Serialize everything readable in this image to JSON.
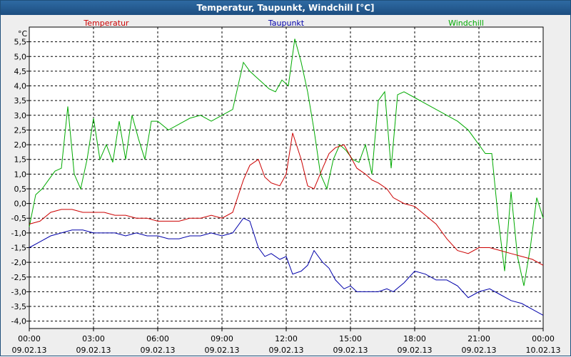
{
  "window": {
    "title": "Temperatur, Taupunkt, Windchill [°C]"
  },
  "colors": {
    "Temperatur": "#cc0000",
    "Taupunkt": "#0000aa",
    "Windchill": "#00aa00",
    "grid": "#000000",
    "plot_background": "#ffffff"
  },
  "chart_data": {
    "type": "line",
    "title": "Temperatur, Taupunkt, Windchill [°C]",
    "unit": "°C",
    "ylim": [
      -4.25,
      6.0
    ],
    "xlim": [
      0,
      24
    ],
    "grid": true,
    "y_ticks": [
      "5,5",
      "5,0",
      "4,5",
      "4,0",
      "3,5",
      "3,0",
      "2,5",
      "2,0",
      "1,5",
      "1,0",
      "0,5",
      "0,0",
      "-0,5",
      "-1,0",
      "-1,5",
      "-2,0",
      "-2,5",
      "-3,0",
      "-3,5",
      "-4,0"
    ],
    "y_tick_values": [
      5.5,
      5.0,
      4.5,
      4.0,
      3.5,
      3.0,
      2.5,
      2.0,
      1.5,
      1.0,
      0.5,
      0.0,
      -0.5,
      -1.0,
      -1.5,
      -2.0,
      -2.5,
      -3.0,
      -3.5,
      -4.0
    ],
    "x_ticks": [
      {
        "time": "00:00",
        "date": "09.02.13"
      },
      {
        "time": "03:00",
        "date": "09.02.13"
      },
      {
        "time": "06:00",
        "date": "09.02.13"
      },
      {
        "time": "09:00",
        "date": "09.02.13"
      },
      {
        "time": "12:00",
        "date": "09.02.13"
      },
      {
        "time": "15:00",
        "date": "09.02.13"
      },
      {
        "time": "18:00",
        "date": "09.02.13"
      },
      {
        "time": "21:00",
        "date": "09.02.13"
      },
      {
        "time": "00:00",
        "date": "10.02.13"
      }
    ],
    "series": [
      {
        "name": "Temperatur",
        "x": [
          0,
          0.5,
          1,
          1.5,
          2,
          2.5,
          3,
          3.5,
          4,
          4.5,
          5,
          5.5,
          6,
          6.5,
          7,
          7.5,
          8,
          8.5,
          9,
          9.5,
          10,
          10.3,
          10.7,
          11,
          11.3,
          11.7,
          12,
          12.3,
          12.7,
          13,
          13.3,
          13.7,
          14,
          14.3,
          14.7,
          15,
          15.3,
          15.7,
          16,
          16.3,
          16.7,
          17,
          17.5,
          18,
          18.5,
          19,
          19.5,
          20,
          20.5,
          21,
          21.5,
          22,
          22.5,
          23,
          23.5,
          24
        ],
        "values": [
          -0.7,
          -0.6,
          -0.3,
          -0.2,
          -0.2,
          -0.3,
          -0.3,
          -0.3,
          -0.4,
          -0.4,
          -0.5,
          -0.5,
          -0.6,
          -0.6,
          -0.6,
          -0.5,
          -0.5,
          -0.4,
          -0.5,
          -0.3,
          0.8,
          1.3,
          1.5,
          0.9,
          0.7,
          0.6,
          1.0,
          2.4,
          1.5,
          0.6,
          0.5,
          1.2,
          1.7,
          1.9,
          2.0,
          1.6,
          1.2,
          1.0,
          0.8,
          0.7,
          0.5,
          0.2,
          0.0,
          -0.1,
          -0.4,
          -0.7,
          -1.2,
          -1.6,
          -1.7,
          -1.5,
          -1.5,
          -1.6,
          -1.7,
          -1.8,
          -1.9,
          -2.1
        ]
      },
      {
        "name": "Taupunkt",
        "x": [
          0,
          0.5,
          1,
          1.5,
          2,
          2.5,
          3,
          3.5,
          4,
          4.5,
          5,
          5.5,
          6,
          6.5,
          7,
          7.5,
          8,
          8.5,
          9,
          9.5,
          10,
          10.3,
          10.7,
          11,
          11.3,
          11.7,
          12,
          12.3,
          12.7,
          13,
          13.3,
          13.7,
          14,
          14.3,
          14.7,
          15,
          15.3,
          15.7,
          16,
          16.3,
          16.7,
          17,
          17.5,
          18,
          18.5,
          19,
          19.5,
          20,
          20.5,
          21,
          21.5,
          22,
          22.5,
          23,
          23.5,
          24
        ],
        "values": [
          -1.5,
          -1.3,
          -1.1,
          -1.0,
          -0.9,
          -0.9,
          -1.0,
          -1.0,
          -1.0,
          -1.1,
          -1.0,
          -1.1,
          -1.1,
          -1.2,
          -1.2,
          -1.1,
          -1.1,
          -1.0,
          -1.1,
          -1.0,
          -0.5,
          -0.6,
          -1.5,
          -1.8,
          -1.7,
          -1.9,
          -1.8,
          -2.4,
          -2.3,
          -2.1,
          -1.6,
          -2.0,
          -2.2,
          -2.6,
          -2.9,
          -2.8,
          -3.0,
          -3.0,
          -3.0,
          -3.0,
          -2.9,
          -3.0,
          -2.7,
          -2.3,
          -2.4,
          -2.6,
          -2.6,
          -2.8,
          -3.2,
          -3.0,
          -2.9,
          -3.1,
          -3.3,
          -3.4,
          -3.6,
          -3.8
        ]
      },
      {
        "name": "Windchill",
        "x": [
          0,
          0.3,
          0.6,
          0.9,
          1.2,
          1.5,
          1.8,
          2.1,
          2.4,
          2.7,
          3,
          3.3,
          3.6,
          3.9,
          4.2,
          4.5,
          4.8,
          5.1,
          5.4,
          5.7,
          6,
          6.5,
          7,
          7.5,
          8,
          8.5,
          9,
          9.5,
          10,
          10.3,
          10.6,
          10.9,
          11.2,
          11.5,
          11.8,
          12.1,
          12.4,
          12.7,
          13,
          13.3,
          13.6,
          13.9,
          14.2,
          14.5,
          14.8,
          15.1,
          15.4,
          15.7,
          16,
          16.3,
          16.6,
          16.9,
          17.2,
          17.5,
          18,
          18.5,
          19,
          19.5,
          20,
          20.5,
          21,
          21.3,
          21.6,
          21.9,
          22.2,
          22.5,
          22.8,
          23.1,
          23.4,
          23.7,
          24
        ],
        "values": [
          -0.8,
          0.3,
          0.5,
          0.8,
          1.1,
          1.2,
          3.3,
          1.0,
          0.5,
          1.5,
          2.9,
          1.5,
          2.0,
          1.4,
          2.8,
          1.5,
          3.0,
          2.2,
          1.5,
          2.8,
          2.8,
          2.5,
          2.7,
          2.9,
          3.0,
          2.8,
          3.0,
          3.2,
          4.8,
          4.5,
          4.3,
          4.1,
          3.9,
          3.8,
          4.2,
          4.0,
          5.6,
          4.8,
          3.8,
          2.5,
          1.0,
          0.5,
          1.5,
          2.0,
          1.8,
          1.5,
          1.4,
          2.0,
          1.0,
          3.5,
          3.8,
          1.2,
          3.7,
          3.8,
          3.6,
          3.4,
          3.2,
          3.0,
          2.8,
          2.5,
          2.0,
          1.7,
          1.7,
          -0.5,
          -2.3,
          0.4,
          -1.8,
          -2.8,
          -1.5,
          0.2,
          -0.5
        ]
      }
    ]
  }
}
